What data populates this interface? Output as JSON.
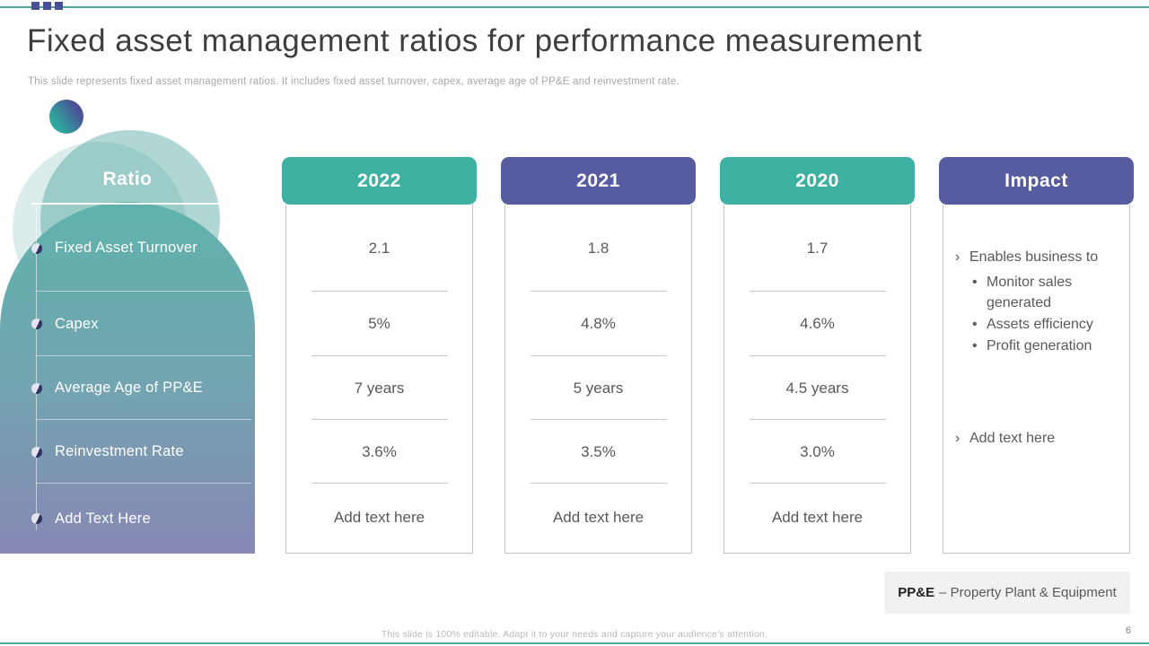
{
  "slide": {
    "title": "Fixed asset management ratios for performance measurement",
    "subtitle": "This slide represents fixed asset management ratios. It includes fixed asset turnover, capex, average age of PP&E and reinvestment rate.",
    "footer": "This slide is 100% editable.  Adapt it to your needs and capture your audience's attention.",
    "page_number": "6"
  },
  "colors": {
    "accent_teal": "#3EB1A3",
    "accent_purple": "#575B9F",
    "line_teal": "#4CA9A0",
    "deco_square_purple": "#4A5095"
  },
  "table": {
    "ratio_header": "Ratio",
    "ratios": [
      "Fixed Asset Turnover",
      "Capex",
      "Average Age of PP&E",
      "Reinvestment Rate",
      "Add Text Here"
    ],
    "columns": [
      {
        "label": "2022",
        "values": [
          "2.1",
          "5%",
          "7 years",
          "3.6%",
          "Add text here"
        ]
      },
      {
        "label": "2021",
        "values": [
          "1.8",
          "4.8%",
          "5 years",
          "3.5%",
          "Add text here"
        ]
      },
      {
        "label": "2020",
        "values": [
          "1.7",
          "4.6%",
          "4.5 years",
          "3.0%",
          "Add text here"
        ]
      }
    ],
    "impact": {
      "label": "Impact",
      "item1": "Enables business to",
      "sub_bullets": [
        "Monitor sales generated",
        "Assets efficiency",
        "Profit generation"
      ],
      "item2": "Add text here"
    }
  },
  "footnote": {
    "term": "PP&E",
    "definition": "– Property Plant & Equipment"
  },
  "icons": {
    "chevron_bullet": "›",
    "dot_bullet": "•"
  }
}
